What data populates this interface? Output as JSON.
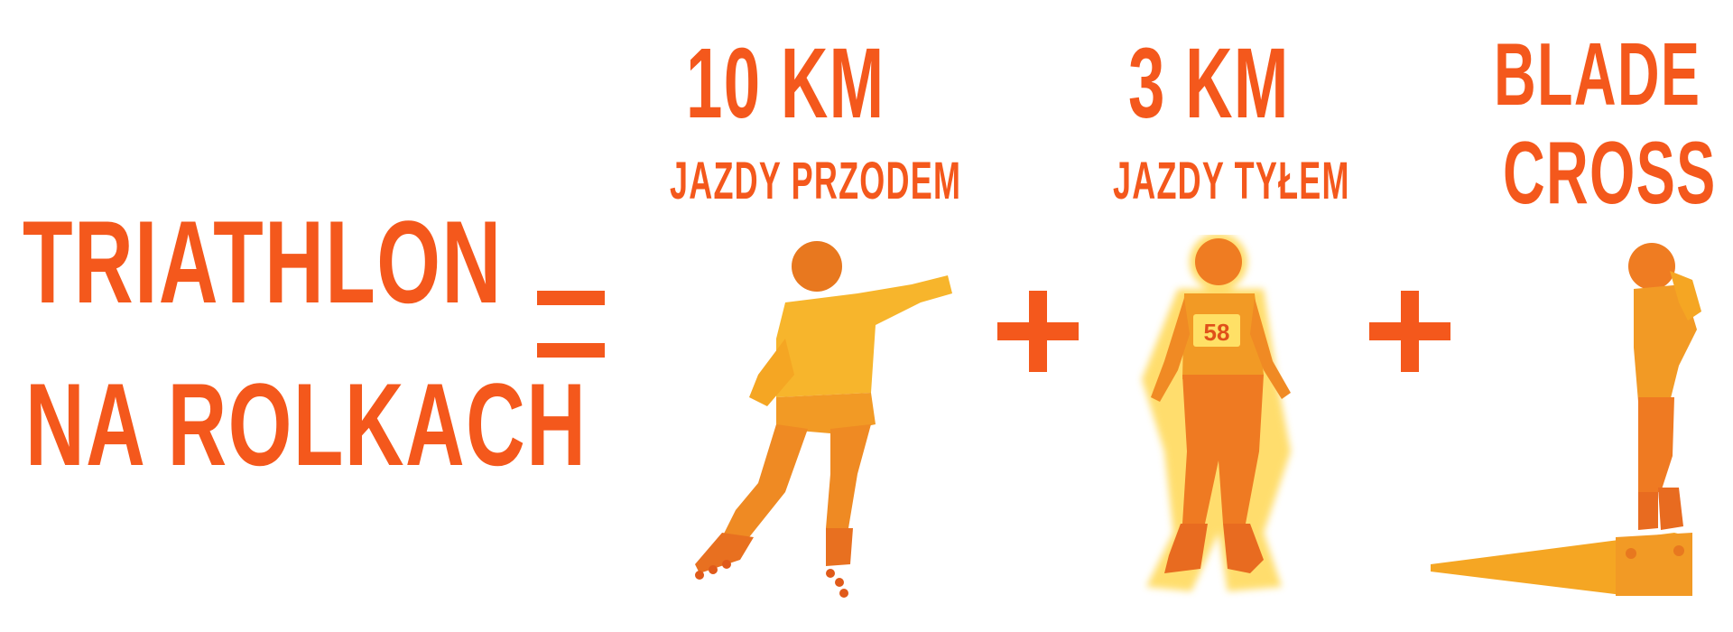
{
  "title": {
    "line1": "TRIATHLON",
    "line2": "NA ROLKACH"
  },
  "equals_symbol": "=",
  "events": [
    {
      "headline": "10 KM",
      "subline": "JAZDY PRZODEM"
    },
    {
      "headline": "3 KM",
      "subline": "JAZDY TYŁEM",
      "bib_number": "58"
    },
    {
      "headline_line1": "BLADE",
      "headline_line2": "CROSS"
    }
  ],
  "colors": {
    "accent": "#f4581c",
    "figure_primary": "#f5a623",
    "figure_glow": "#ffd54a"
  }
}
